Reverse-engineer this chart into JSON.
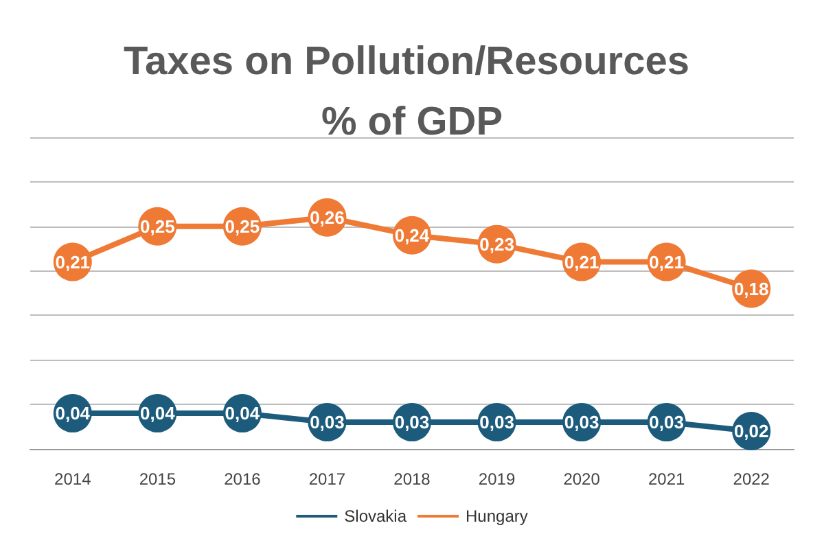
{
  "chart_data": {
    "type": "line",
    "title": "Taxes on Pollution/Resources % of GDP",
    "categories": [
      "2014",
      "2015",
      "2016",
      "2017",
      "2018",
      "2019",
      "2020",
      "2021",
      "2022"
    ],
    "series": [
      {
        "name": "Slovakia",
        "color": "#1d5b7c",
        "values": [
          0.04,
          0.04,
          0.04,
          0.03,
          0.03,
          0.03,
          0.03,
          0.03,
          0.02
        ],
        "value_labels": [
          "0,04",
          "0,04",
          "0,04",
          "0,03",
          "0,03",
          "0,03",
          "0,03",
          "0,03",
          "0,02"
        ]
      },
      {
        "name": "Hungary",
        "color": "#ee7a35",
        "values": [
          0.21,
          0.25,
          0.25,
          0.26,
          0.24,
          0.23,
          0.21,
          0.21,
          0.18
        ],
        "value_labels": [
          "0,21",
          "0,25",
          "0,25",
          "0,26",
          "0,24",
          "0,23",
          "0,21",
          "0,21",
          "0,18"
        ]
      }
    ],
    "ylim": [
      0,
      0.35
    ],
    "yticks": [
      {
        "value": 0,
        "label": null
      },
      {
        "value": 0.05,
        "label": null
      },
      {
        "value": 0.1,
        "label": null
      },
      {
        "value": 0.15,
        "label": null
      },
      {
        "value": 0.2,
        "label": null
      },
      {
        "value": 0.25,
        "label": null
      },
      {
        "value": 0.3,
        "label": null
      },
      {
        "value": 0.35,
        "label": null
      }
    ],
    "tick_labels": "x",
    "grid": "y",
    "legend": "bottom",
    "marker": "circle",
    "line_style": "solid"
  }
}
